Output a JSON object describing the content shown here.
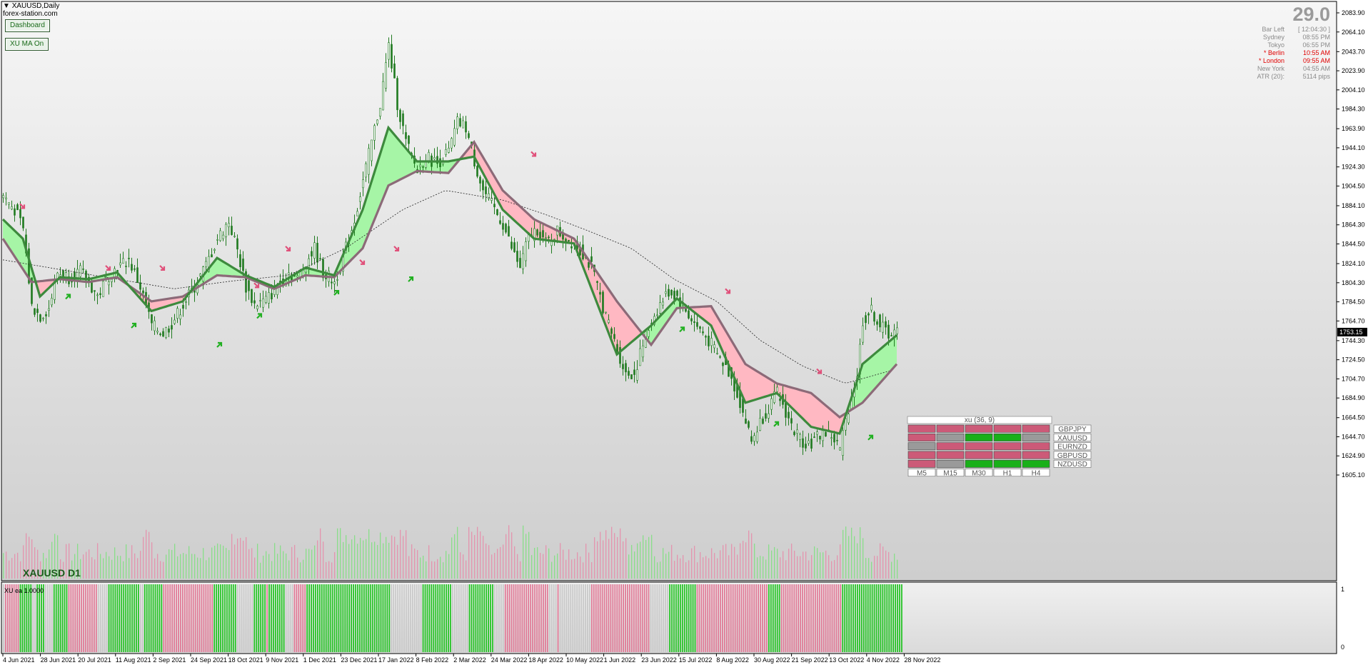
{
  "window": {
    "symbol_title": "XAUUSD,Daily",
    "watermark": "forex-station.com",
    "chart_label": "XAUUSD D1",
    "subwindow_label": "XU ea 1.0000"
  },
  "buttons": {
    "dashboard": "Dashboard",
    "ma_toggle": "XU MA On"
  },
  "info_panel": {
    "spread": "29.0",
    "rows": [
      {
        "label": "Bar Left",
        "value": "[ 12:04:30 ]",
        "color": "#8a8a8a"
      },
      {
        "label": "Sydney",
        "value": "08:55 PM",
        "color": "#8a8a8a"
      },
      {
        "label": "Tokyo",
        "value": "06:55 PM",
        "color": "#8a8a8a"
      },
      {
        "label": "* Berlin",
        "value": "10:55 AM",
        "color": "#e00000"
      },
      {
        "label": "* London",
        "value": "09:55 AM",
        "color": "#e00000"
      },
      {
        "label": "New York",
        "value": "04:55 AM",
        "color": "#8a8a8a"
      },
      {
        "label": "ATR (20):",
        "value": "5114 pips",
        "color": "#8a8a8a"
      }
    ]
  },
  "colors": {
    "bull_fill": "#a6f5a6",
    "bear_fill": "#ffb8c2",
    "ma_line_bull": "#3d8a3d",
    "ma_line_bear": "#8c6a78",
    "candle": "#1f7a1f",
    "vol_bull": "#7de07d",
    "vol_bear": "#e88aa8",
    "bar_bull": "#22c322",
    "bar_bear": "#e07895",
    "bar_neutral": "#c8c8c8",
    "arrow_up": "#22b022",
    "arrow_down": "#e0507a",
    "price_tag_bg": "#000000"
  },
  "chart_data": {
    "type": "candlestick",
    "title": "XAUUSD,Daily",
    "ylim": [
      1605.1,
      2083.9
    ],
    "y_ticks": [
      "2083.90",
      "2064.10",
      "2043.70",
      "2023.90",
      "2004.10",
      "1984.30",
      "1963.90",
      "1944.10",
      "1924.30",
      "1904.50",
      "1884.10",
      "1864.30",
      "1844.50",
      "1824.10",
      "1804.30",
      "1784.50",
      "1764.70",
      "1744.30",
      "1724.50",
      "1704.70",
      "1684.90",
      "1664.50",
      "1644.70",
      "1624.90",
      "1605.10"
    ],
    "last_price": "1753.15",
    "x_labels": [
      "4 Jun 2021",
      "28 Jun 2021",
      "20 Jul 2021",
      "11 Aug 2021",
      "2 Sep 2021",
      "24 Sep 2021",
      "18 Oct 2021",
      "9 Nov 2021",
      "1 Dec 2021",
      "23 Dec 2021",
      "17 Jan 2022",
      "8 Feb 2022",
      "2 Mar 2022",
      "24 Mar 2022",
      "18 Apr 2022",
      "10 May 2022",
      "1 Jun 2022",
      "23 Jun 2022",
      "15 Jul 2022",
      "8 Aug 2022",
      "30 Aug 2022",
      "21 Sep 2022",
      "13 Oct 2022",
      "4 Nov 2022",
      "28 Nov 2022"
    ],
    "close_path": [
      [
        0,
        1895
      ],
      [
        8,
        1880
      ],
      [
        14,
        1860
      ],
      [
        20,
        1780
      ],
      [
        26,
        1770
      ],
      [
        32,
        1778
      ],
      [
        38,
        1815
      ],
      [
        46,
        1810
      ],
      [
        54,
        1816
      ],
      [
        60,
        1805
      ],
      [
        66,
        1790
      ],
      [
        74,
        1812
      ],
      [
        80,
        1820
      ],
      [
        88,
        1828
      ],
      [
        96,
        1800
      ],
      [
        104,
        1760
      ],
      [
        112,
        1752
      ],
      [
        118,
        1762
      ],
      [
        126,
        1782
      ],
      [
        134,
        1800
      ],
      [
        142,
        1822
      ],
      [
        150,
        1850
      ],
      [
        158,
        1868
      ],
      [
        164,
        1838
      ],
      [
        170,
        1800
      ],
      [
        176,
        1782
      ],
      [
        184,
        1786
      ],
      [
        192,
        1800
      ],
      [
        200,
        1815
      ],
      [
        206,
        1808
      ],
      [
        212,
        1825
      ],
      [
        218,
        1840
      ],
      [
        224,
        1815
      ],
      [
        232,
        1805
      ],
      [
        238,
        1830
      ],
      [
        246,
        1870
      ],
      [
        252,
        1910
      ],
      [
        258,
        1950
      ],
      [
        264,
        1990
      ],
      [
        270,
        2050
      ],
      [
        276,
        1990
      ],
      [
        282,
        1950
      ],
      [
        290,
        1920
      ],
      [
        296,
        1935
      ],
      [
        304,
        1928
      ],
      [
        312,
        1940
      ],
      [
        318,
        1970
      ],
      [
        324,
        1965
      ],
      [
        330,
        1930
      ],
      [
        336,
        1900
      ],
      [
        342,
        1885
      ],
      [
        350,
        1865
      ],
      [
        356,
        1840
      ],
      [
        362,
        1820
      ],
      [
        368,
        1852
      ],
      [
        374,
        1860
      ],
      [
        380,
        1845
      ],
      [
        388,
        1858
      ],
      [
        394,
        1850
      ],
      [
        400,
        1845
      ],
      [
        406,
        1835
      ],
      [
        412,
        1820
      ],
      [
        418,
        1790
      ],
      [
        424,
        1760
      ],
      [
        430,
        1735
      ],
      [
        436,
        1710
      ],
      [
        442,
        1710
      ],
      [
        448,
        1740
      ],
      [
        454,
        1765
      ],
      [
        460,
        1782
      ],
      [
        466,
        1795
      ],
      [
        472,
        1790
      ],
      [
        478,
        1775
      ],
      [
        484,
        1762
      ],
      [
        490,
        1752
      ],
      [
        496,
        1740
      ],
      [
        502,
        1725
      ],
      [
        508,
        1712
      ],
      [
        514,
        1690
      ],
      [
        520,
        1660
      ],
      [
        524,
        1640
      ],
      [
        530,
        1660
      ],
      [
        536,
        1675
      ],
      [
        542,
        1690
      ],
      [
        548,
        1670
      ],
      [
        554,
        1650
      ],
      [
        560,
        1640
      ],
      [
        566,
        1638
      ],
      [
        574,
        1650
      ],
      [
        580,
        1646
      ],
      [
        586,
        1632
      ],
      [
        592,
        1675
      ],
      [
        598,
        1710
      ],
      [
        602,
        1765
      ],
      [
        608,
        1775
      ],
      [
        614,
        1760
      ],
      [
        620,
        1752
      ],
      [
        626,
        1753
      ]
    ],
    "ma_fast": [
      [
        0,
        1870
      ],
      [
        14,
        1850
      ],
      [
        26,
        1790
      ],
      [
        40,
        1810
      ],
      [
        60,
        1808
      ],
      [
        80,
        1815
      ],
      [
        104,
        1775
      ],
      [
        126,
        1785
      ],
      [
        150,
        1830
      ],
      [
        170,
        1812
      ],
      [
        190,
        1800
      ],
      [
        212,
        1820
      ],
      [
        232,
        1812
      ],
      [
        252,
        1880
      ],
      [
        270,
        1965
      ],
      [
        290,
        1930
      ],
      [
        312,
        1930
      ],
      [
        330,
        1935
      ],
      [
        350,
        1880
      ],
      [
        372,
        1850
      ],
      [
        400,
        1845
      ],
      [
        430,
        1730
      ],
      [
        454,
        1760
      ],
      [
        472,
        1788
      ],
      [
        496,
        1760
      ],
      [
        520,
        1680
      ],
      [
        542,
        1690
      ],
      [
        566,
        1655
      ],
      [
        586,
        1648
      ],
      [
        602,
        1720
      ],
      [
        626,
        1750
      ]
    ],
    "ma_slow": [
      [
        0,
        1850
      ],
      [
        20,
        1805
      ],
      [
        40,
        1808
      ],
      [
        60,
        1805
      ],
      [
        80,
        1810
      ],
      [
        104,
        1785
      ],
      [
        126,
        1790
      ],
      [
        150,
        1812
      ],
      [
        170,
        1810
      ],
      [
        190,
        1798
      ],
      [
        212,
        1812
      ],
      [
        232,
        1810
      ],
      [
        252,
        1840
      ],
      [
        270,
        1905
      ],
      [
        290,
        1920
      ],
      [
        312,
        1918
      ],
      [
        330,
        1950
      ],
      [
        350,
        1900
      ],
      [
        372,
        1870
      ],
      [
        400,
        1850
      ],
      [
        430,
        1785
      ],
      [
        454,
        1740
      ],
      [
        472,
        1778
      ],
      [
        496,
        1780
      ],
      [
        520,
        1720
      ],
      [
        542,
        1700
      ],
      [
        566,
        1690
      ],
      [
        586,
        1665
      ],
      [
        602,
        1680
      ],
      [
        626,
        1720
      ]
    ],
    "ma_long": [
      [
        0,
        1828
      ],
      [
        40,
        1818
      ],
      [
        80,
        1808
      ],
      [
        120,
        1798
      ],
      [
        160,
        1806
      ],
      [
        200,
        1812
      ],
      [
        240,
        1840
      ],
      [
        280,
        1880
      ],
      [
        310,
        1900
      ],
      [
        350,
        1890
      ],
      [
        380,
        1875
      ],
      [
        410,
        1858
      ],
      [
        440,
        1840
      ],
      [
        470,
        1808
      ],
      [
        500,
        1785
      ],
      [
        530,
        1745
      ],
      [
        560,
        1718
      ],
      [
        590,
        1700
      ],
      [
        626,
        1715
      ]
    ],
    "up_arrows": [
      [
        44,
        1792
      ],
      [
        90,
        1762
      ],
      [
        150,
        1742
      ],
      [
        178,
        1772
      ],
      [
        232,
        1796
      ],
      [
        284,
        1810
      ],
      [
        540,
        1660
      ],
      [
        474,
        1758
      ],
      [
        606,
        1646
      ]
    ],
    "down_arrows": [
      [
        12,
        1886
      ],
      [
        72,
        1822
      ],
      [
        110,
        1822
      ],
      [
        176,
        1804
      ],
      [
        198,
        1842
      ],
      [
        250,
        1828
      ],
      [
        274,
        1842
      ],
      [
        370,
        1940
      ],
      [
        506,
        1798
      ],
      [
        570,
        1715
      ]
    ],
    "sub_regimes": "NBBBBBBBGGGGGGNNGGGGNNNNGGGGGGGBBBBBBBBBBBBBBNNNNNGGGGGGGGGGGGGGGNNGGGGGGGGGBBBBBBBBBBBBBBBBBBBBBBBBGGGGGGGGGGGNNNNNNNNGGGGGGBGGGGGGGGNNNNBBBBBBGGGGGGGGGGGGGGGGGGGGGGGGGGGGGGGGGGGGGGGGNNNNNNNNNNNNNNNGGGGGGGGGGGGGGNNNNNNNNGGGGGGGGGGGGNNNNNBBBBBBBBBBBBBBBBBBBBBNNNNBNNNNNNNNNNNNNNNBBBBBBBBBBBBBBBBBBBBBBBBBBBBNNNNNNNNNGGGGGGGGGGGGGBBBBBBBBBBBBBBBBBBBBBBBBBBBBBBBBBBGGGGGGBBBBBBBBBBBBBBBBBBBBBBBBBBBBBGGGGGGGGGGGGGGGGGGGGGGGGGGGGG"
  },
  "dashboard": {
    "title": "xu (36, 9)",
    "symbols": [
      "GBPJPY",
      "XAUUSD",
      "EURNZD",
      "GBPUSD",
      "NZDUSD"
    ],
    "timeframes": [
      "M5",
      "M15",
      "M30",
      "H1",
      "H4"
    ],
    "states": [
      [
        "bear",
        "bear",
        "bear",
        "bear",
        "bear"
      ],
      [
        "bear",
        "neutral",
        "bull",
        "bull",
        "neutral"
      ],
      [
        "neutral",
        "bear",
        "bear",
        "bear",
        "bear"
      ],
      [
        "bear",
        "bear",
        "bear",
        "bear",
        "bear"
      ],
      [
        "bear",
        "neutral",
        "bull",
        "bull",
        "bull"
      ]
    ],
    "sub_scale_top": "1",
    "sub_scale_bottom": "0"
  }
}
